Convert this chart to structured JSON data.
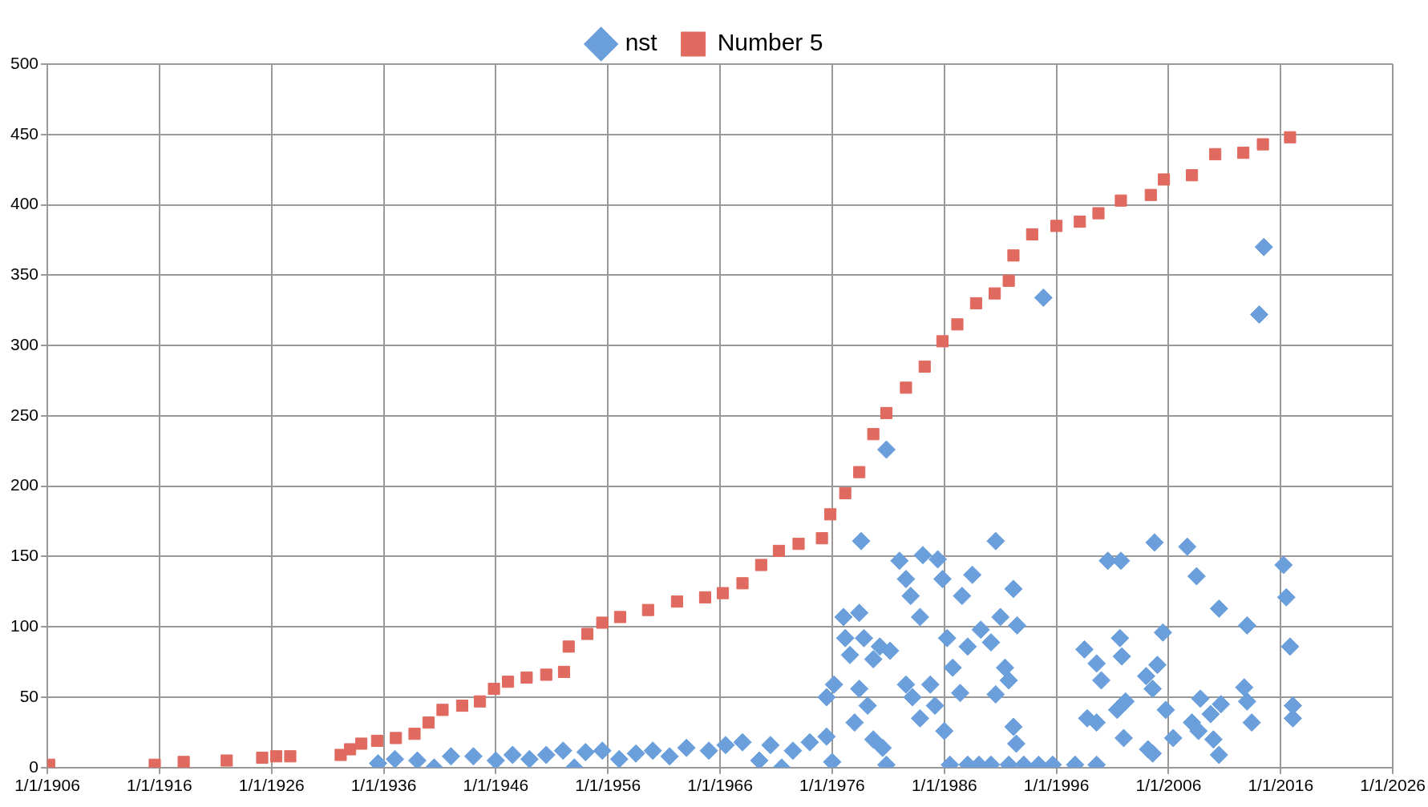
{
  "chart_data": {
    "type": "scatter",
    "xlim": [
      "1906-01-01",
      "2026-01-01"
    ],
    "xticks": [
      {
        "value": "1906-01-01",
        "label": "1/1/1906"
      },
      {
        "value": "1916-01-01",
        "label": "1/1/1916"
      },
      {
        "value": "1926-01-01",
        "label": "1/1/1926"
      },
      {
        "value": "1936-01-01",
        "label": "1/1/1936"
      },
      {
        "value": "1946-01-01",
        "label": "1/1/1946"
      },
      {
        "value": "1956-01-01",
        "label": "1/1/1956"
      },
      {
        "value": "1966-01-01",
        "label": "1/1/1966"
      },
      {
        "value": "1976-01-01",
        "label": "1/1/1976"
      },
      {
        "value": "1986-01-01",
        "label": "1/1/1986"
      },
      {
        "value": "1996-01-01",
        "label": "1/1/1996"
      },
      {
        "value": "2006-01-01",
        "label": "1/1/2006"
      },
      {
        "value": "2016-01-01",
        "label": "1/1/2016"
      },
      {
        "value": "2026-01-01",
        "label": "1/1/2026"
      }
    ],
    "ylim": [
      0,
      500
    ],
    "yticks": [
      0,
      50,
      100,
      150,
      200,
      250,
      300,
      350,
      400,
      450,
      500
    ],
    "grid": true,
    "legend": "top",
    "series": [
      {
        "name": "nst",
        "color": "#6a9fdc",
        "marker": "diamond",
        "x": [
          "1935-07",
          "1937-01",
          "1939-01",
          "1940-07",
          "1942-01",
          "1944-01",
          "1946-01",
          "1947-07",
          "1949-01",
          "1950-07",
          "1952-01",
          "1953-01",
          "1954-01",
          "1955-07",
          "1957-01",
          "1958-07",
          "1960-01",
          "1961-07",
          "1963-01",
          "1965-01",
          "1966-07",
          "1968-01",
          "1969-07",
          "1970-07",
          "1971-07",
          "1972-07",
          "1974-01",
          "1975-07",
          "1976-01",
          "1978-08",
          "1977-01",
          "1977-03",
          "1977-08",
          "1978-06",
          "1978-11",
          "1979-09",
          "1980-04",
          "1981-03",
          "1982-01",
          "1982-08",
          "1983-01",
          "1983-11",
          "1984-02",
          "1985-06",
          "1985-11",
          "1986-04",
          "1986-10",
          "1987-08",
          "1988-02",
          "1988-07",
          "1989-04",
          "1990-03",
          "1990-08",
          "1991-01",
          "1992-03",
          "1992-07",
          "1991-06",
          "1991-10",
          "1990-08",
          "1975-07",
          "1976-03",
          "1978-06",
          "1979-03",
          "1978-01",
          "1979-09",
          "1980-07",
          "1980-11",
          "1982-08",
          "1983-03",
          "1983-11",
          "1984-10",
          "1985-03",
          "1986-01",
          "1986-07",
          "1987-06",
          "1988-02",
          "1989-02",
          "1990-03",
          "1991-10",
          "1992-03",
          "1992-06",
          "1993-02",
          "1994-06",
          "1995-09",
          "1997-09",
          "1999-08",
          "1994-11",
          "1980-11",
          "1998-07",
          "1999-08",
          "2000-01",
          "1998-10",
          "1999-08",
          "2000-08",
          "2001-10",
          "2001-09",
          "2001-11",
          "2001-06",
          "2002-03",
          "2002-01",
          "2004-01",
          "2004-08",
          "2004-10",
          "2005-01",
          "2005-07",
          "2005-10",
          "2004-03",
          "2004-08",
          "2006-06",
          "2007-09",
          "2008-07",
          "2008-02",
          "2008-11",
          "2008-09",
          "2009-10",
          "2010-01",
          "2010-07",
          "2010-07",
          "2010-09",
          "2013-01",
          "2012-10",
          "2013-01",
          "2013-06",
          "2014-07",
          "2014-02",
          "2016-04",
          "2016-07",
          "2016-11",
          "2017-02",
          "2017-02"
        ],
        "values": [
          3,
          6,
          5,
          0,
          8,
          8,
          5,
          9,
          6,
          9,
          12,
          0,
          11,
          12,
          6,
          10,
          12,
          8,
          14,
          12,
          16,
          18,
          5,
          16,
          0,
          12,
          18,
          22,
          4,
          161,
          107,
          92,
          80,
          110,
          92,
          77,
          86,
          83,
          147,
          134,
          122,
          107,
          151,
          148,
          134,
          92,
          71,
          122,
          86,
          137,
          98,
          89,
          161,
          107,
          127,
          101,
          71,
          62,
          52,
          50,
          59,
          56,
          44,
          32,
          20,
          14,
          2,
          59,
          50,
          35,
          59,
          44,
          26,
          2,
          53,
          2,
          2,
          2,
          2,
          29,
          17,
          2,
          2,
          2,
          2,
          2,
          334,
          226,
          84,
          74,
          62,
          35,
          32,
          147,
          147,
          92,
          79,
          41,
          47,
          21,
          65,
          56,
          160,
          73,
          96,
          41,
          13,
          10,
          21,
          157,
          136,
          32,
          49,
          26,
          38,
          20,
          9,
          113,
          45,
          101,
          57,
          47,
          32,
          370,
          322,
          144,
          121,
          86,
          44,
          35
        ]
      },
      {
        "name": "Number 5",
        "color": "#e06a60",
        "marker": "square",
        "x": [
          "1906-03",
          "1915-08",
          "1918-03",
          "1922-01",
          "1925-03",
          "1926-06",
          "1927-09",
          "1932-03",
          "1933-01",
          "1934-01",
          "1935-06",
          "1937-02",
          "1938-10",
          "1940-01",
          "1941-04",
          "1943-01",
          "1944-08",
          "1945-11",
          "1947-02",
          "1948-10",
          "1950-07",
          "1952-02",
          "1952-07",
          "1954-03",
          "1955-07",
          "1957-02",
          "1959-08",
          "1962-03",
          "1964-09",
          "1966-04",
          "1968-01",
          "1969-09",
          "1971-04",
          "1973-01",
          "1975-02",
          "1975-11",
          "1977-03",
          "1978-06",
          "1979-09",
          "1980-11",
          "1982-08",
          "1984-04",
          "1985-11",
          "1987-03",
          "1988-11",
          "1990-07",
          "1991-10",
          "1992-03",
          "1993-11",
          "1996-01",
          "1998-02",
          "1999-10",
          "2001-10",
          "2004-06",
          "2005-08",
          "2008-02",
          "2010-03",
          "2012-09",
          "2014-06",
          "2016-11"
        ],
        "values": [
          2,
          2,
          4,
          5,
          7,
          8,
          8,
          9,
          13,
          17,
          19,
          21,
          24,
          32,
          41,
          44,
          47,
          56,
          61,
          64,
          66,
          68,
          86,
          95,
          103,
          107,
          112,
          118,
          121,
          124,
          131,
          144,
          154,
          159,
          163,
          180,
          195,
          210,
          237,
          252,
          270,
          285,
          303,
          315,
          330,
          337,
          346,
          364,
          379,
          385,
          388,
          394,
          403,
          407,
          418,
          421,
          436,
          437,
          443,
          448
        ]
      }
    ]
  }
}
